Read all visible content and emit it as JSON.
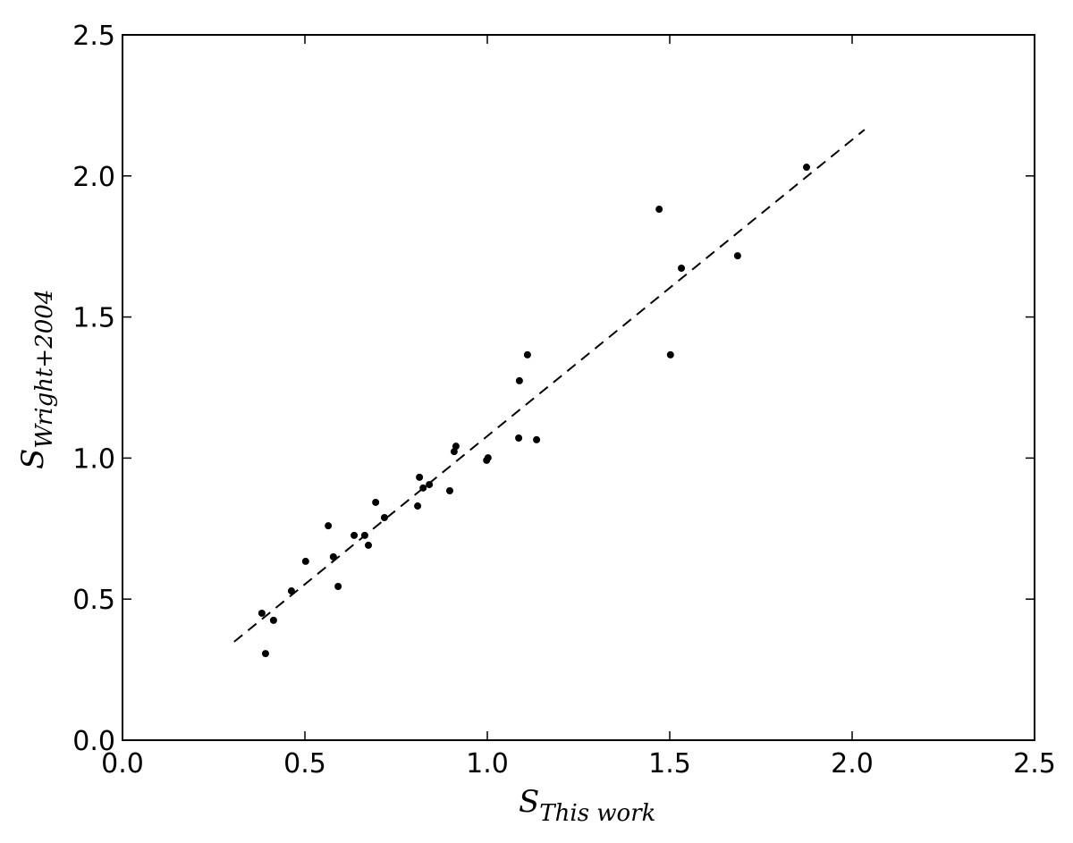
{
  "chart_data": {
    "type": "scatter",
    "xlabel": {
      "symbol": "S",
      "subscript": "This work"
    },
    "ylabel": {
      "symbol": "S",
      "subscript": "Wright+2004"
    },
    "xlim": [
      0,
      2.5
    ],
    "ylim": [
      0,
      2.5
    ],
    "xticks": [
      {
        "value": 0,
        "label": "0.0"
      },
      0.5,
      {
        "value": 1,
        "label": "1.0"
      },
      1.5,
      {
        "value": 2,
        "label": "2.0"
      },
      2.5
    ],
    "yticks": [
      {
        "value": 0,
        "label": "0.0"
      },
      0.5,
      {
        "value": 1,
        "label": "1.0"
      },
      1.5,
      {
        "value": 2,
        "label": "2.0"
      },
      2.5
    ],
    "points": {
      "color": "#000000",
      "x": [
        0.382,
        0.392,
        0.414,
        0.463,
        0.502,
        0.564,
        0.578,
        0.591,
        0.635,
        0.664,
        0.674,
        0.694,
        0.718,
        0.809,
        0.814,
        0.824,
        0.841,
        0.897,
        0.909,
        0.914,
        0.998,
        1.002,
        1.086,
        1.088,
        1.11,
        1.135,
        1.471,
        1.502,
        1.532,
        1.686,
        1.875
      ],
      "y": [
        0.45,
        0.307,
        0.425,
        0.529,
        0.634,
        0.76,
        0.65,
        0.545,
        0.726,
        0.726,
        0.691,
        0.843,
        0.789,
        0.83,
        0.932,
        0.894,
        0.906,
        0.884,
        1.023,
        1.042,
        0.992,
        1.001,
        1.071,
        1.274,
        1.366,
        1.065,
        1.882,
        1.366,
        1.673,
        1.717,
        2.031
      ]
    },
    "fit_line": {
      "x": [
        0.306,
        2.034
      ],
      "y": [
        0.349,
        2.164
      ],
      "style": "dashed",
      "color": "#000000"
    }
  }
}
